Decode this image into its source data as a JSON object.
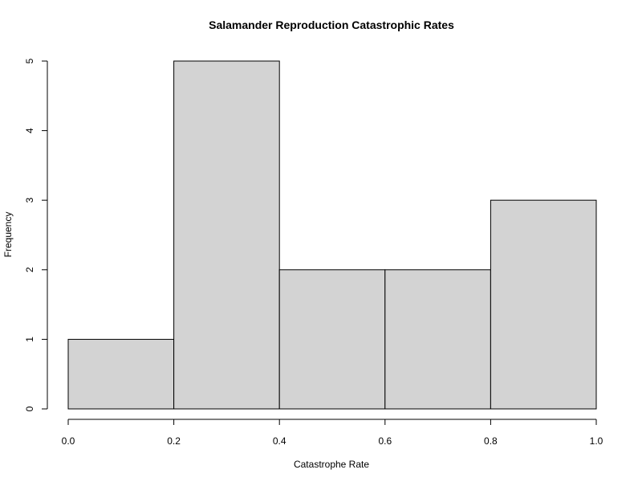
{
  "chart_data": {
    "type": "bar",
    "title": "Salamander Reproduction Catastrophic Rates",
    "xlabel": "Catastrophe Rate",
    "ylabel": "Frequency",
    "bins": [
      {
        "start": 0.0,
        "end": 0.2,
        "count": 1
      },
      {
        "start": 0.2,
        "end": 0.4,
        "count": 5
      },
      {
        "start": 0.4,
        "end": 0.6,
        "count": 2
      },
      {
        "start": 0.6,
        "end": 0.8,
        "count": 2
      },
      {
        "start": 0.8,
        "end": 1.0,
        "count": 3
      }
    ],
    "xlim": [
      0.0,
      1.0
    ],
    "ylim": [
      0,
      5
    ],
    "x_ticks": [
      "0.0",
      "0.2",
      "0.4",
      "0.6",
      "0.8",
      "1.0"
    ],
    "y_ticks": [
      "0",
      "1",
      "2",
      "3",
      "4",
      "5"
    ],
    "grid": false,
    "colors": {
      "bar_fill": "#d3d3d3",
      "bar_stroke": "#000000"
    }
  }
}
